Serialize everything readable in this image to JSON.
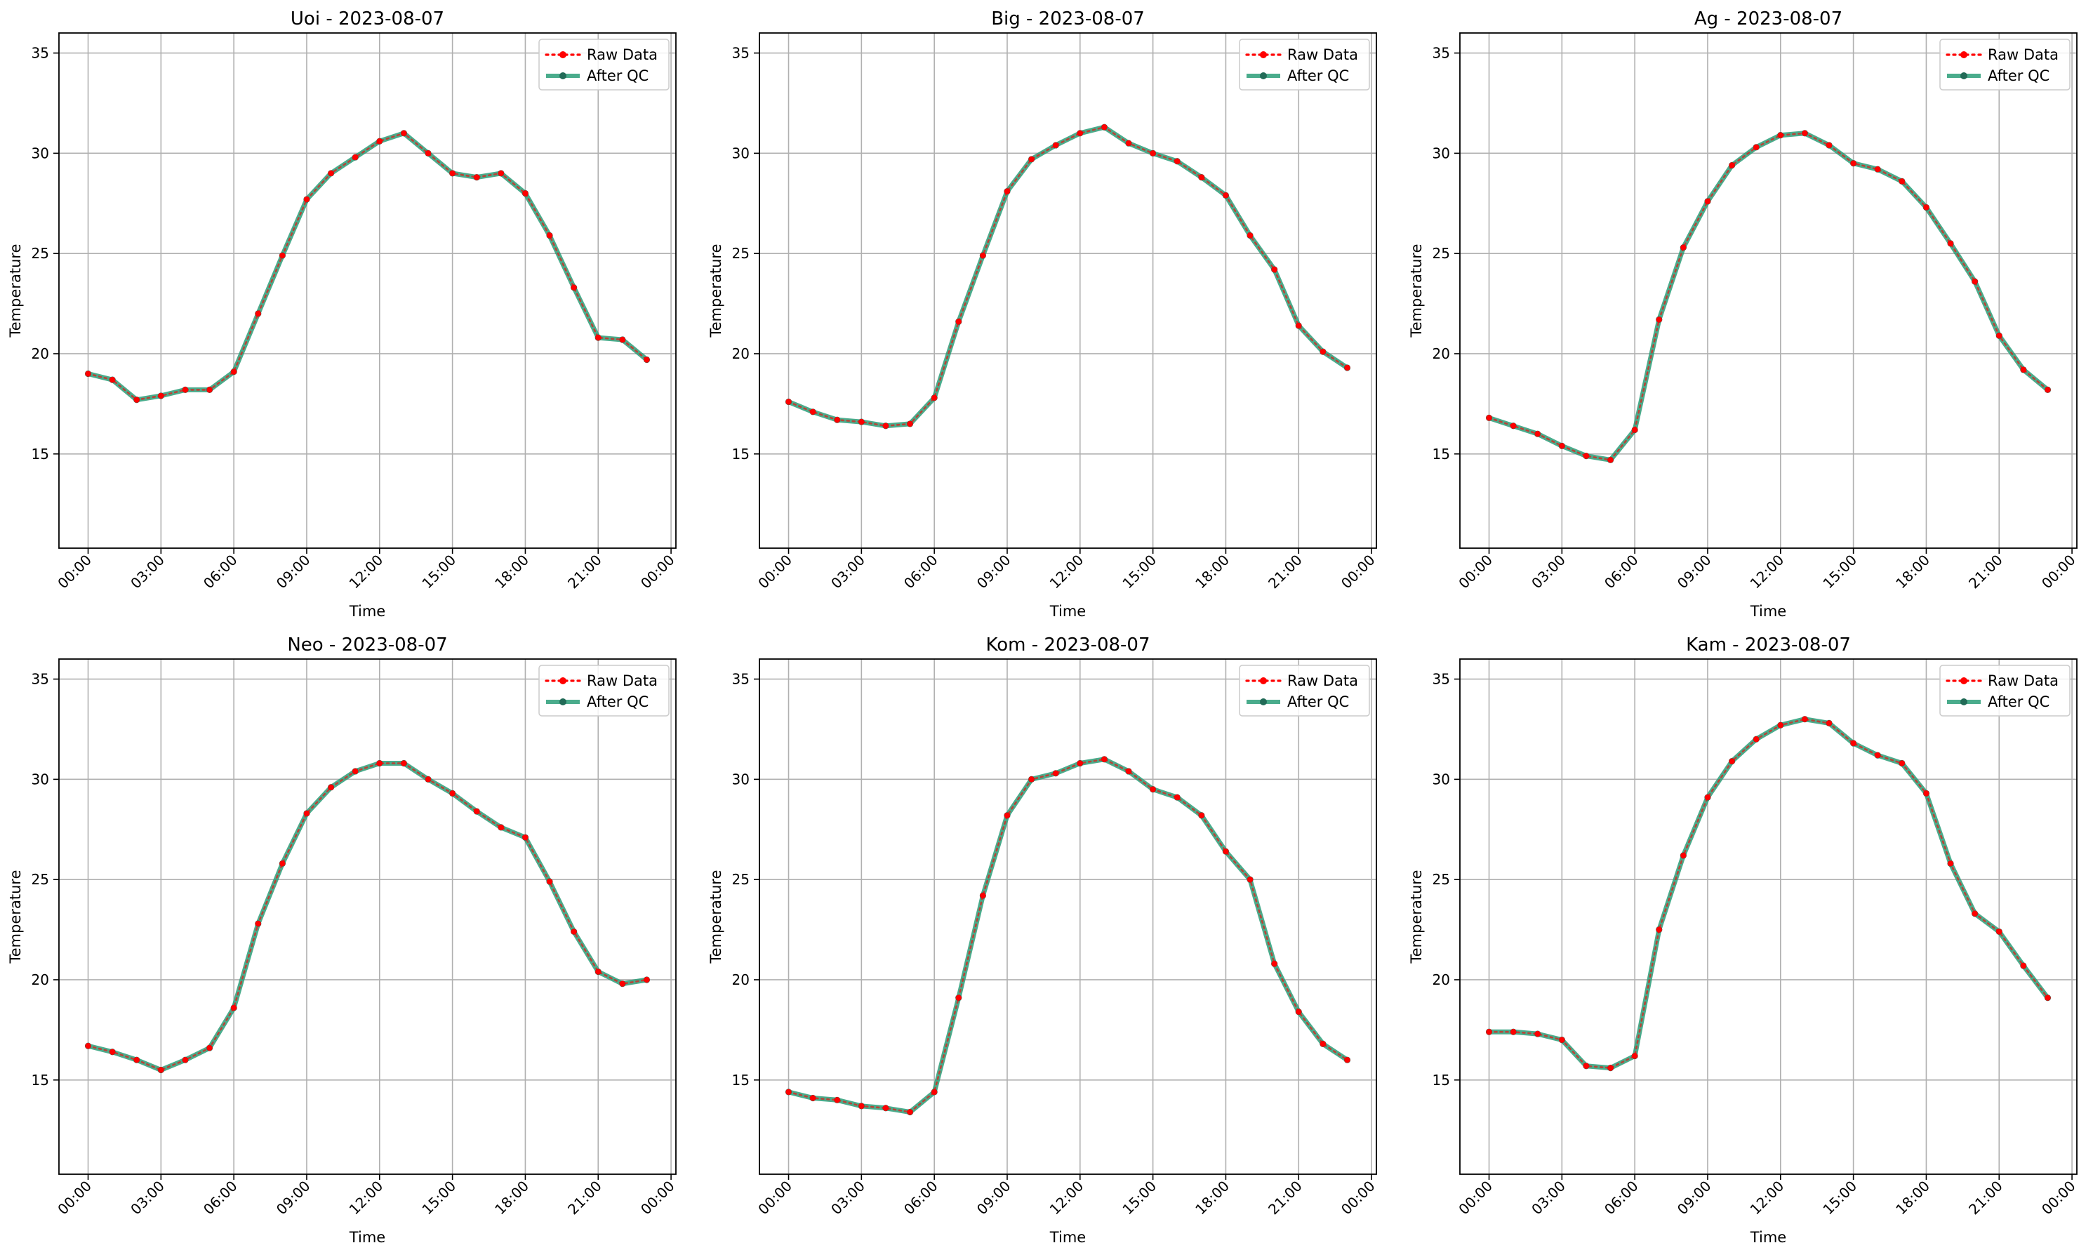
{
  "colors": {
    "raw": "#ff0000",
    "qc": "#2a9d78",
    "qc_marker": "#226b57",
    "grid": "#b0b0b0"
  },
  "chart_data": [
    {
      "type": "line",
      "title": "Uoi - 2023-08-07",
      "xlabel": "Time",
      "ylabel": "Temperature",
      "ylim": [
        10.3,
        36.0
      ],
      "yticks": [
        "15",
        "20",
        "25",
        "30",
        "35"
      ],
      "xlim_hours": [
        -1.2,
        24.2
      ],
      "xticks": [
        "00:00",
        "03:00",
        "06:00",
        "09:00",
        "12:00",
        "15:00",
        "18:00",
        "21:00",
        "00:00"
      ],
      "grid": true,
      "legend": "top-right",
      "x": [
        "00:00",
        "01:00",
        "02:00",
        "03:00",
        "04:00",
        "05:00",
        "06:00",
        "07:00",
        "08:00",
        "09:00",
        "10:00",
        "11:00",
        "12:00",
        "13:00",
        "14:00",
        "15:00",
        "16:00",
        "17:00",
        "18:00",
        "19:00",
        "20:00",
        "21:00",
        "22:00",
        "23:00"
      ],
      "series": [
        {
          "name": "Raw Data",
          "values": [
            19.0,
            18.7,
            17.7,
            17.9,
            18.2,
            18.2,
            19.1,
            22.0,
            24.9,
            27.7,
            29.0,
            29.8,
            30.6,
            31.0,
            30.0,
            29.0,
            28.8,
            29.0,
            28.0,
            25.9,
            23.3,
            20.8,
            20.7,
            19.7
          ]
        },
        {
          "name": "After QC",
          "values": [
            19.0,
            18.7,
            17.7,
            17.9,
            18.2,
            18.2,
            19.1,
            22.0,
            24.9,
            27.7,
            29.0,
            29.8,
            30.6,
            31.0,
            30.0,
            29.0,
            28.8,
            29.0,
            28.0,
            25.9,
            23.3,
            20.8,
            20.7,
            19.7
          ]
        }
      ]
    },
    {
      "type": "line",
      "title": "Big - 2023-08-07",
      "xlabel": "Time",
      "ylabel": "Temperature",
      "ylim": [
        10.3,
        36.0
      ],
      "yticks": [
        "15",
        "20",
        "25",
        "30",
        "35"
      ],
      "xlim_hours": [
        -1.2,
        24.2
      ],
      "xticks": [
        "00:00",
        "03:00",
        "06:00",
        "09:00",
        "12:00",
        "15:00",
        "18:00",
        "21:00",
        "00:00"
      ],
      "grid": true,
      "legend": "top-right",
      "x": [
        "00:00",
        "01:00",
        "02:00",
        "03:00",
        "04:00",
        "05:00",
        "06:00",
        "07:00",
        "08:00",
        "09:00",
        "10:00",
        "11:00",
        "12:00",
        "13:00",
        "14:00",
        "15:00",
        "16:00",
        "17:00",
        "18:00",
        "19:00",
        "20:00",
        "21:00",
        "22:00",
        "23:00"
      ],
      "series": [
        {
          "name": "Raw Data",
          "values": [
            17.6,
            17.1,
            16.7,
            16.6,
            16.4,
            16.5,
            17.8,
            21.6,
            24.9,
            28.1,
            29.7,
            30.4,
            31.0,
            31.3,
            30.5,
            30.0,
            29.6,
            28.8,
            27.9,
            25.9,
            24.2,
            21.4,
            20.1,
            19.3
          ]
        },
        {
          "name": "After QC",
          "values": [
            17.6,
            17.1,
            16.7,
            16.6,
            16.4,
            16.5,
            17.8,
            21.6,
            24.9,
            28.1,
            29.7,
            30.4,
            31.0,
            31.3,
            30.5,
            30.0,
            29.6,
            28.8,
            27.9,
            25.9,
            24.2,
            21.4,
            20.1,
            19.3
          ]
        }
      ]
    },
    {
      "type": "line",
      "title": "Ag - 2023-08-07",
      "xlabel": "Time",
      "ylabel": "Temperature",
      "ylim": [
        10.3,
        36.0
      ],
      "yticks": [
        "15",
        "20",
        "25",
        "30",
        "35"
      ],
      "xlim_hours": [
        -1.2,
        24.2
      ],
      "xticks": [
        "00:00",
        "03:00",
        "06:00",
        "09:00",
        "12:00",
        "15:00",
        "18:00",
        "21:00",
        "00:00"
      ],
      "grid": true,
      "legend": "top-right",
      "x": [
        "00:00",
        "01:00",
        "02:00",
        "03:00",
        "04:00",
        "05:00",
        "06:00",
        "07:00",
        "08:00",
        "09:00",
        "10:00",
        "11:00",
        "12:00",
        "13:00",
        "14:00",
        "15:00",
        "16:00",
        "17:00",
        "18:00",
        "19:00",
        "20:00",
        "21:00",
        "22:00",
        "23:00"
      ],
      "series": [
        {
          "name": "Raw Data",
          "values": [
            16.8,
            16.4,
            16.0,
            15.4,
            14.9,
            14.7,
            16.2,
            21.7,
            25.3,
            27.6,
            29.4,
            30.3,
            30.9,
            31.0,
            30.4,
            29.5,
            29.2,
            28.6,
            27.3,
            25.5,
            23.6,
            20.9,
            19.2,
            18.2
          ]
        },
        {
          "name": "After QC",
          "values": [
            16.8,
            16.4,
            16.0,
            15.4,
            14.9,
            14.7,
            16.2,
            21.7,
            25.3,
            27.6,
            29.4,
            30.3,
            30.9,
            31.0,
            30.4,
            29.5,
            29.2,
            28.6,
            27.3,
            25.5,
            23.6,
            20.9,
            19.2,
            18.2
          ]
        }
      ]
    },
    {
      "type": "line",
      "title": "Neo - 2023-08-07",
      "xlabel": "Time",
      "ylabel": "Temperature",
      "ylim": [
        10.3,
        36.0
      ],
      "yticks": [
        "15",
        "20",
        "25",
        "30",
        "35"
      ],
      "xlim_hours": [
        -1.2,
        24.2
      ],
      "xticks": [
        "00:00",
        "03:00",
        "06:00",
        "09:00",
        "12:00",
        "15:00",
        "18:00",
        "21:00",
        "00:00"
      ],
      "grid": true,
      "legend": "top-right",
      "x": [
        "00:00",
        "01:00",
        "02:00",
        "03:00",
        "04:00",
        "05:00",
        "06:00",
        "07:00",
        "08:00",
        "09:00",
        "10:00",
        "11:00",
        "12:00",
        "13:00",
        "14:00",
        "15:00",
        "16:00",
        "17:00",
        "18:00",
        "19:00",
        "20:00",
        "21:00",
        "22:00",
        "23:00"
      ],
      "series": [
        {
          "name": "Raw Data",
          "values": [
            16.7,
            16.4,
            16.0,
            15.5,
            16.0,
            16.6,
            18.6,
            22.8,
            25.8,
            28.3,
            29.6,
            30.4,
            30.8,
            30.8,
            30.0,
            29.3,
            28.4,
            27.6,
            27.1,
            24.9,
            22.4,
            20.4,
            19.8,
            20.0
          ]
        },
        {
          "name": "After QC",
          "values": [
            16.7,
            16.4,
            16.0,
            15.5,
            16.0,
            16.6,
            18.6,
            22.8,
            25.8,
            28.3,
            29.6,
            30.4,
            30.8,
            30.8,
            30.0,
            29.3,
            28.4,
            27.6,
            27.1,
            24.9,
            22.4,
            20.4,
            19.8,
            20.0
          ]
        }
      ]
    },
    {
      "type": "line",
      "title": "Kom - 2023-08-07",
      "xlabel": "Time",
      "ylabel": "Temperature",
      "ylim": [
        10.3,
        36.0
      ],
      "yticks": [
        "15",
        "20",
        "25",
        "30",
        "35"
      ],
      "xlim_hours": [
        -1.2,
        24.2
      ],
      "xticks": [
        "00:00",
        "03:00",
        "06:00",
        "09:00",
        "12:00",
        "15:00",
        "18:00",
        "21:00",
        "00:00"
      ],
      "grid": true,
      "legend": "top-right",
      "x": [
        "00:00",
        "01:00",
        "02:00",
        "03:00",
        "04:00",
        "05:00",
        "06:00",
        "07:00",
        "08:00",
        "09:00",
        "10:00",
        "11:00",
        "12:00",
        "13:00",
        "14:00",
        "15:00",
        "16:00",
        "17:00",
        "18:00",
        "19:00",
        "20:00",
        "21:00",
        "22:00",
        "23:00"
      ],
      "series": [
        {
          "name": "Raw Data",
          "values": [
            14.4,
            14.1,
            14.0,
            13.7,
            13.6,
            13.4,
            14.4,
            19.1,
            24.2,
            28.2,
            30.0,
            30.3,
            30.8,
            31.0,
            30.4,
            29.5,
            29.1,
            28.2,
            26.4,
            25.0,
            20.8,
            18.4,
            16.8,
            16.0
          ]
        },
        {
          "name": "After QC",
          "values": [
            14.4,
            14.1,
            14.0,
            13.7,
            13.6,
            13.4,
            14.4,
            19.1,
            24.2,
            28.2,
            30.0,
            30.3,
            30.8,
            31.0,
            30.4,
            29.5,
            29.1,
            28.2,
            26.4,
            25.0,
            20.8,
            18.4,
            16.8,
            16.0
          ]
        }
      ]
    },
    {
      "type": "line",
      "title": "Kam - 2023-08-07",
      "xlabel": "Time",
      "ylabel": "Temperature",
      "ylim": [
        10.3,
        36.0
      ],
      "yticks": [
        "15",
        "20",
        "25",
        "30",
        "35"
      ],
      "xlim_hours": [
        -1.2,
        24.2
      ],
      "xticks": [
        "00:00",
        "03:00",
        "06:00",
        "09:00",
        "12:00",
        "15:00",
        "18:00",
        "21:00",
        "00:00"
      ],
      "grid": true,
      "legend": "top-right",
      "x": [
        "00:00",
        "01:00",
        "02:00",
        "03:00",
        "04:00",
        "05:00",
        "06:00",
        "07:00",
        "08:00",
        "09:00",
        "10:00",
        "11:00",
        "12:00",
        "13:00",
        "14:00",
        "15:00",
        "16:00",
        "17:00",
        "18:00",
        "19:00",
        "20:00",
        "21:00",
        "22:00",
        "23:00"
      ],
      "series": [
        {
          "name": "Raw Data",
          "values": [
            17.4,
            17.4,
            17.3,
            17.0,
            15.7,
            15.6,
            16.2,
            22.5,
            26.2,
            29.1,
            30.9,
            32.0,
            32.7,
            33.0,
            32.8,
            31.8,
            31.2,
            30.8,
            29.3,
            25.8,
            23.3,
            22.4,
            20.7,
            19.1
          ]
        },
        {
          "name": "After QC",
          "values": [
            17.4,
            17.4,
            17.3,
            17.0,
            15.7,
            15.6,
            16.2,
            22.5,
            26.2,
            29.1,
            30.9,
            32.0,
            32.7,
            33.0,
            32.8,
            31.8,
            31.2,
            30.8,
            29.3,
            25.8,
            23.3,
            22.4,
            20.7,
            19.1
          ]
        }
      ]
    }
  ]
}
